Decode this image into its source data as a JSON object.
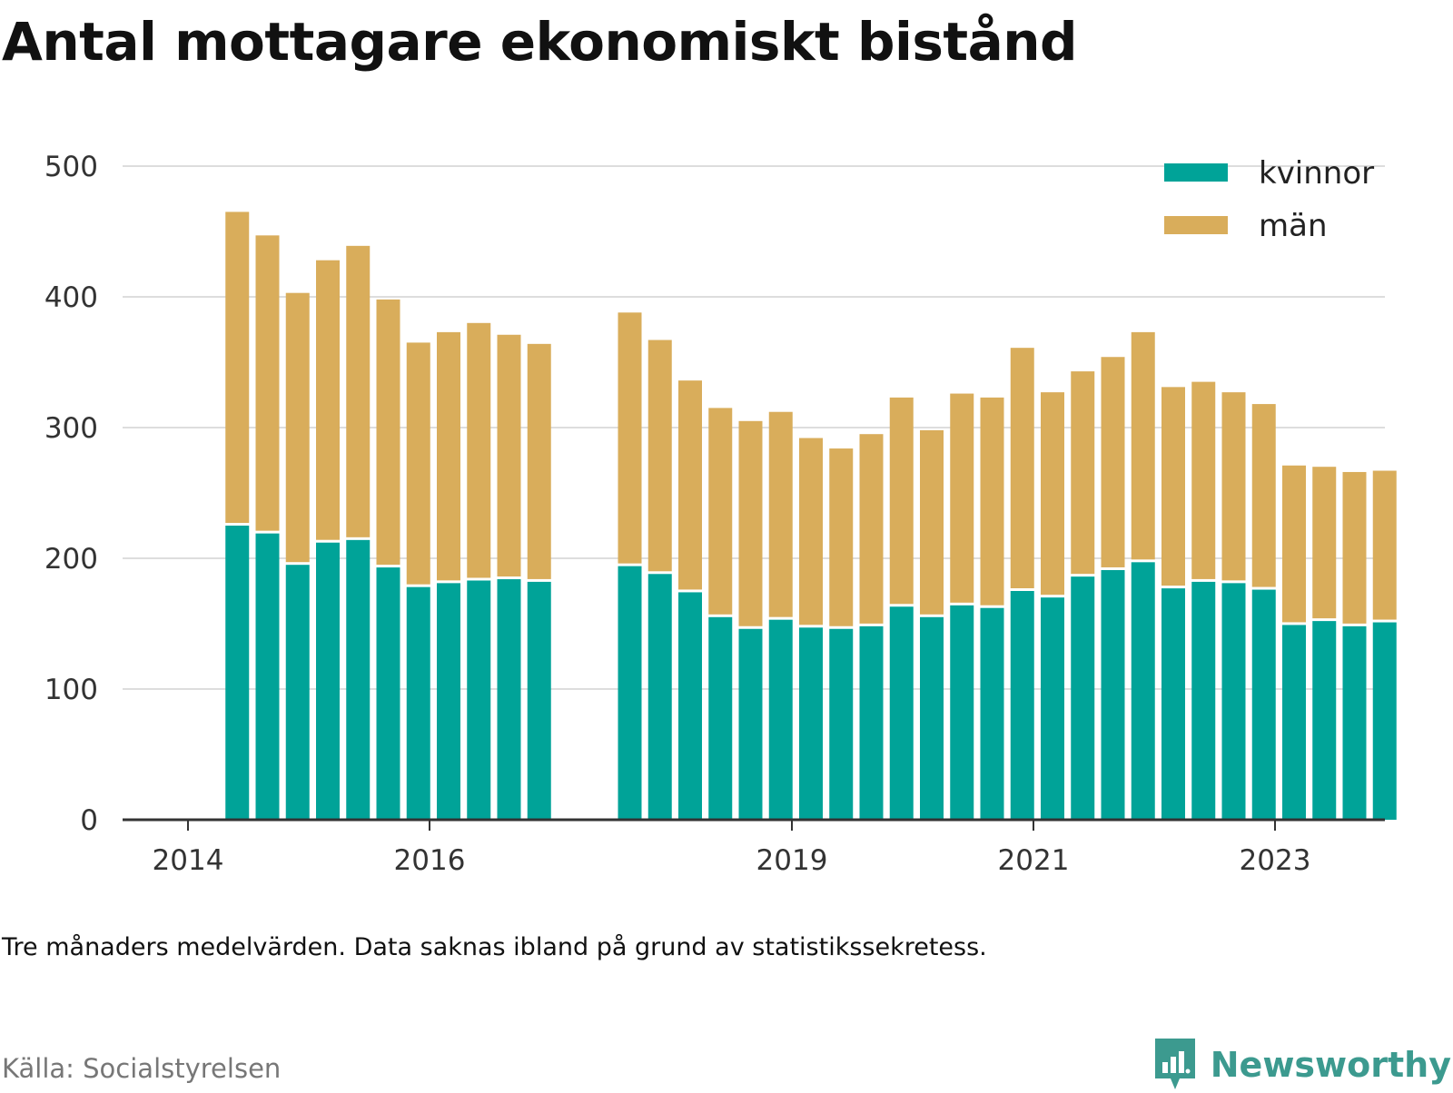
{
  "title": "Antal mottagare ekonomiskt bistånd",
  "note": "Tre månaders medelvärden. Data saknas ibland på grund av statistikssekretess.",
  "source": "Källa: Socialstyrelsen",
  "brand": {
    "name": "Newsworthy",
    "icon": "newsworthy-logo-icon",
    "color": "#3c9a8f"
  },
  "chart_data": {
    "type": "bar",
    "stacked": true,
    "x_tick_labels": [
      "2014",
      "2016",
      "2019",
      "2021",
      "2023"
    ],
    "x_tick_dates": [
      "2014-01",
      "2016-01",
      "2019-01",
      "2021-01",
      "2023-01"
    ],
    "x": [
      "2014-04",
      "2014-07",
      "2014-10",
      "2015-01",
      "2015-04",
      "2015-07",
      "2015-10",
      "2016-01",
      "2016-04",
      "2016-07",
      "2016-10",
      "2017-07",
      "2017-10",
      "2018-01",
      "2018-04",
      "2018-07",
      "2018-10",
      "2019-01",
      "2019-04",
      "2019-07",
      "2019-10",
      "2020-01",
      "2020-04",
      "2020-07",
      "2020-10",
      "2021-01",
      "2021-04",
      "2021-07",
      "2021-10",
      "2022-01",
      "2022-04",
      "2022-07",
      "2022-10",
      "2023-01",
      "2023-04",
      "2023-07",
      "2023-10"
    ],
    "series": [
      {
        "name": "kvinnor",
        "color": "#00a398",
        "values": [
          225,
          219,
          195,
          212,
          214,
          193,
          178,
          181,
          183,
          184,
          182,
          194,
          188,
          174,
          155,
          146,
          153,
          147,
          146,
          148,
          163,
          155,
          164,
          162,
          175,
          170,
          186,
          191,
          197,
          177,
          182,
          181,
          176,
          149,
          152,
          148,
          151
        ]
      },
      {
        "name": "män",
        "color": "#d9ad5b",
        "values": [
          240,
          228,
          208,
          216,
          225,
          205,
          187,
          192,
          197,
          187,
          182,
          194,
          179,
          162,
          160,
          159,
          159,
          145,
          138,
          147,
          160,
          143,
          162,
          161,
          186,
          157,
          157,
          163,
          176,
          154,
          153,
          146,
          142,
          122,
          118,
          118,
          116
        ]
      }
    ],
    "y_ticks": [
      0,
      100,
      200,
      300,
      400,
      500
    ],
    "ylim": [
      0,
      500
    ],
    "grid": true,
    "legend": "top-right",
    "xlabel": "",
    "ylabel": ""
  }
}
